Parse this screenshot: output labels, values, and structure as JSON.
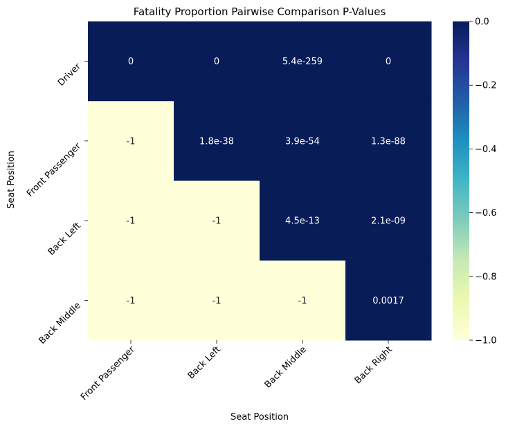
{
  "chart_data": {
    "type": "heatmap",
    "title": "Fatality Proportion Pairwise Comparison P-Values",
    "xlabel": "Seat Position",
    "ylabel": "Seat Position",
    "x_categories": [
      "Front Passenger",
      "Back Left",
      "Back Middle",
      "Back Right"
    ],
    "y_categories": [
      "Driver",
      "Front Passenger",
      "Back Left",
      "Back Middle"
    ],
    "values": [
      [
        0,
        0,
        5.4e-259,
        0
      ],
      [
        -1,
        1.8e-38,
        3.9e-54,
        1.3e-88
      ],
      [
        -1,
        -1,
        4.5e-13,
        2.1e-09
      ],
      [
        -1,
        -1,
        -1,
        0.0017
      ]
    ],
    "annotations": [
      [
        "0",
        "0",
        "5.4e-259",
        "0"
      ],
      [
        "-1",
        "1.8e-38",
        "3.9e-54",
        "1.3e-88"
      ],
      [
        "-1",
        "-1",
        "4.5e-13",
        "2.1e-09"
      ],
      [
        "-1",
        "-1",
        "-1",
        "0.0017"
      ]
    ],
    "colormap": "YlGnBu_r",
    "colormap_stops": [
      "#ffffd9",
      "#edf8b1",
      "#c7e9b4",
      "#7fcdbb",
      "#41b6c4",
      "#1d91c0",
      "#225ea8",
      "#253494",
      "#081d58"
    ],
    "vmin": -1.0,
    "vmax": 0.0,
    "colorbar_ticks": [
      0.0,
      -0.2,
      -0.4,
      -0.6,
      -0.8,
      -1.0
    ],
    "colorbar_tick_labels": [
      "0.0",
      "−0.2",
      "−0.4",
      "−0.6",
      "−0.8",
      "−1.0"
    ]
  }
}
